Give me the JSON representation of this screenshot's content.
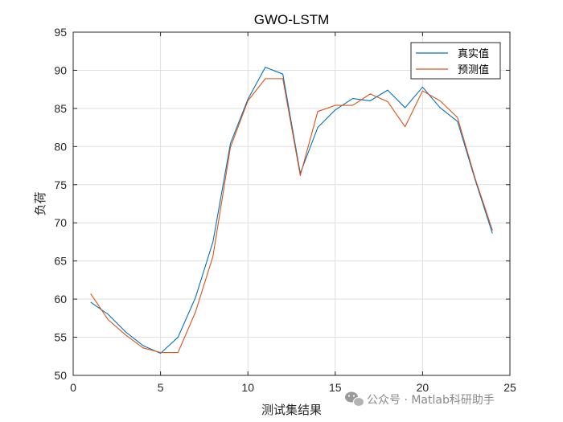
{
  "chart_data": {
    "type": "line",
    "title": "GWO-LSTM",
    "xlabel": "测试集结果",
    "ylabel": "负荷",
    "xlim": [
      0,
      25
    ],
    "ylim": [
      50,
      95
    ],
    "xticks": [
      0,
      5,
      10,
      15,
      20,
      25
    ],
    "yticks": [
      50,
      55,
      60,
      65,
      70,
      75,
      80,
      85,
      90,
      95
    ],
    "grid": true,
    "legend": "top-right",
    "x": [
      1,
      2,
      3,
      4,
      5,
      6,
      7,
      8,
      9,
      10,
      11,
      12,
      13,
      14,
      15,
      16,
      17,
      18,
      19,
      20,
      21,
      22,
      23,
      24
    ],
    "series": [
      {
        "name": "真实值",
        "color": "#0072BD",
        "values": [
          59.6,
          58.0,
          55.7,
          53.9,
          52.9,
          55.0,
          60.2,
          67.5,
          80.4,
          86.2,
          90.4,
          89.5,
          76.5,
          82.5,
          84.8,
          86.3,
          86.0,
          87.4,
          85.1,
          87.8,
          85.1,
          83.3,
          75.7,
          68.6
        ]
      },
      {
        "name": "预测值",
        "color": "#D95319",
        "values": [
          60.7,
          57.3,
          55.3,
          53.6,
          53.0,
          53.0,
          58.3,
          65.6,
          79.9,
          86.0,
          88.9,
          88.9,
          76.2,
          84.6,
          85.4,
          85.4,
          86.9,
          85.9,
          82.6,
          87.3,
          86.0,
          83.8,
          75.9,
          69.0
        ]
      }
    ]
  },
  "watermark": {
    "icon": "wechat-icon",
    "text": "公众号 · Matlab科研助手"
  }
}
